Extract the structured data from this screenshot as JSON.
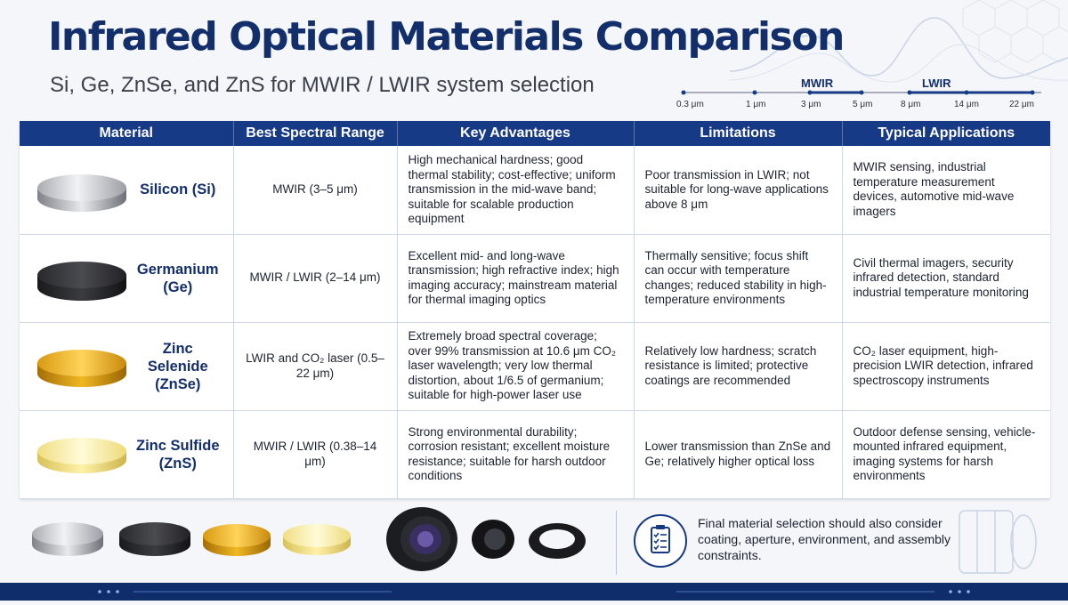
{
  "header": {
    "title": "Infrared Optical Materials Comparison",
    "subtitle": "Si, Ge, ZnSe, and ZnS for MWIR / LWIR system selection"
  },
  "spectrum": {
    "bands": [
      "MWIR",
      "LWIR"
    ],
    "ticks": [
      "0.3 μm",
      "1 μm",
      "3 μm",
      "5 μm",
      "8 μm",
      "14 μm",
      "22 μm"
    ]
  },
  "table": {
    "headers": [
      "Material",
      "Best Spectral Range",
      "Key Advantages",
      "Limitations",
      "Typical Applications"
    ],
    "rows": [
      {
        "material": "Silicon (Si)",
        "range": "MWIR (3–5 μm)",
        "advantages": "High mechanical hardness; good thermal stability; cost-effective; uniform transmission in the mid-wave band; suitable for scalable production equipment",
        "limitations": "Poor transmission in LWIR; not suitable for long-wave applications above 8 μm",
        "applications": "MWIR sensing, industrial temperature measurement devices, automotive mid-wave imagers"
      },
      {
        "material": "Germanium (Ge)",
        "range": "MWIR / LWIR (2–14 μm)",
        "advantages": "Excellent mid- and long-wave transmission; high refractive index; high imaging accuracy; mainstream material for thermal imaging optics",
        "limitations": "Thermally sensitive; focus shift can occur with temperature changes; reduced stability in high-temperature environments",
        "applications": "Civil thermal imagers, security infrared detection, standard industrial temperature monitoring"
      },
      {
        "material": "Zinc Selenide (ZnSe)",
        "range": "LWIR and CO₂ laser (0.5–22 μm)",
        "advantages": "Extremely broad spectral coverage; over 99% transmission at 10.6 μm CO₂ laser wavelength; very low thermal distortion, about 1/6.5 of germanium; suitable for high-power laser use",
        "limitations": "Relatively low hardness; scratch resistance is limited; protective coatings are recommended",
        "applications": "CO₂ laser equipment, high-precision LWIR detection, infrared spectroscopy instruments"
      },
      {
        "material": "Zinc Sulfide (ZnS)",
        "range": "MWIR / LWIR (0.38–14 μm)",
        "advantages": "Strong environmental durability; corrosion resistant; excellent moisture resistance; suitable for harsh outdoor conditions",
        "limitations": "Lower transmission than ZnSe and Ge; relatively higher optical loss",
        "applications": "Outdoor defense sensing, vehicle-mounted infrared equipment, imaging systems for harsh environments"
      }
    ]
  },
  "note": "Final material selection should also consider coating, aperture, environment, and assembly constraints.",
  "colors": {
    "accent": "#173a86",
    "title": "#132f6b",
    "footer": "#0f2d6b"
  }
}
